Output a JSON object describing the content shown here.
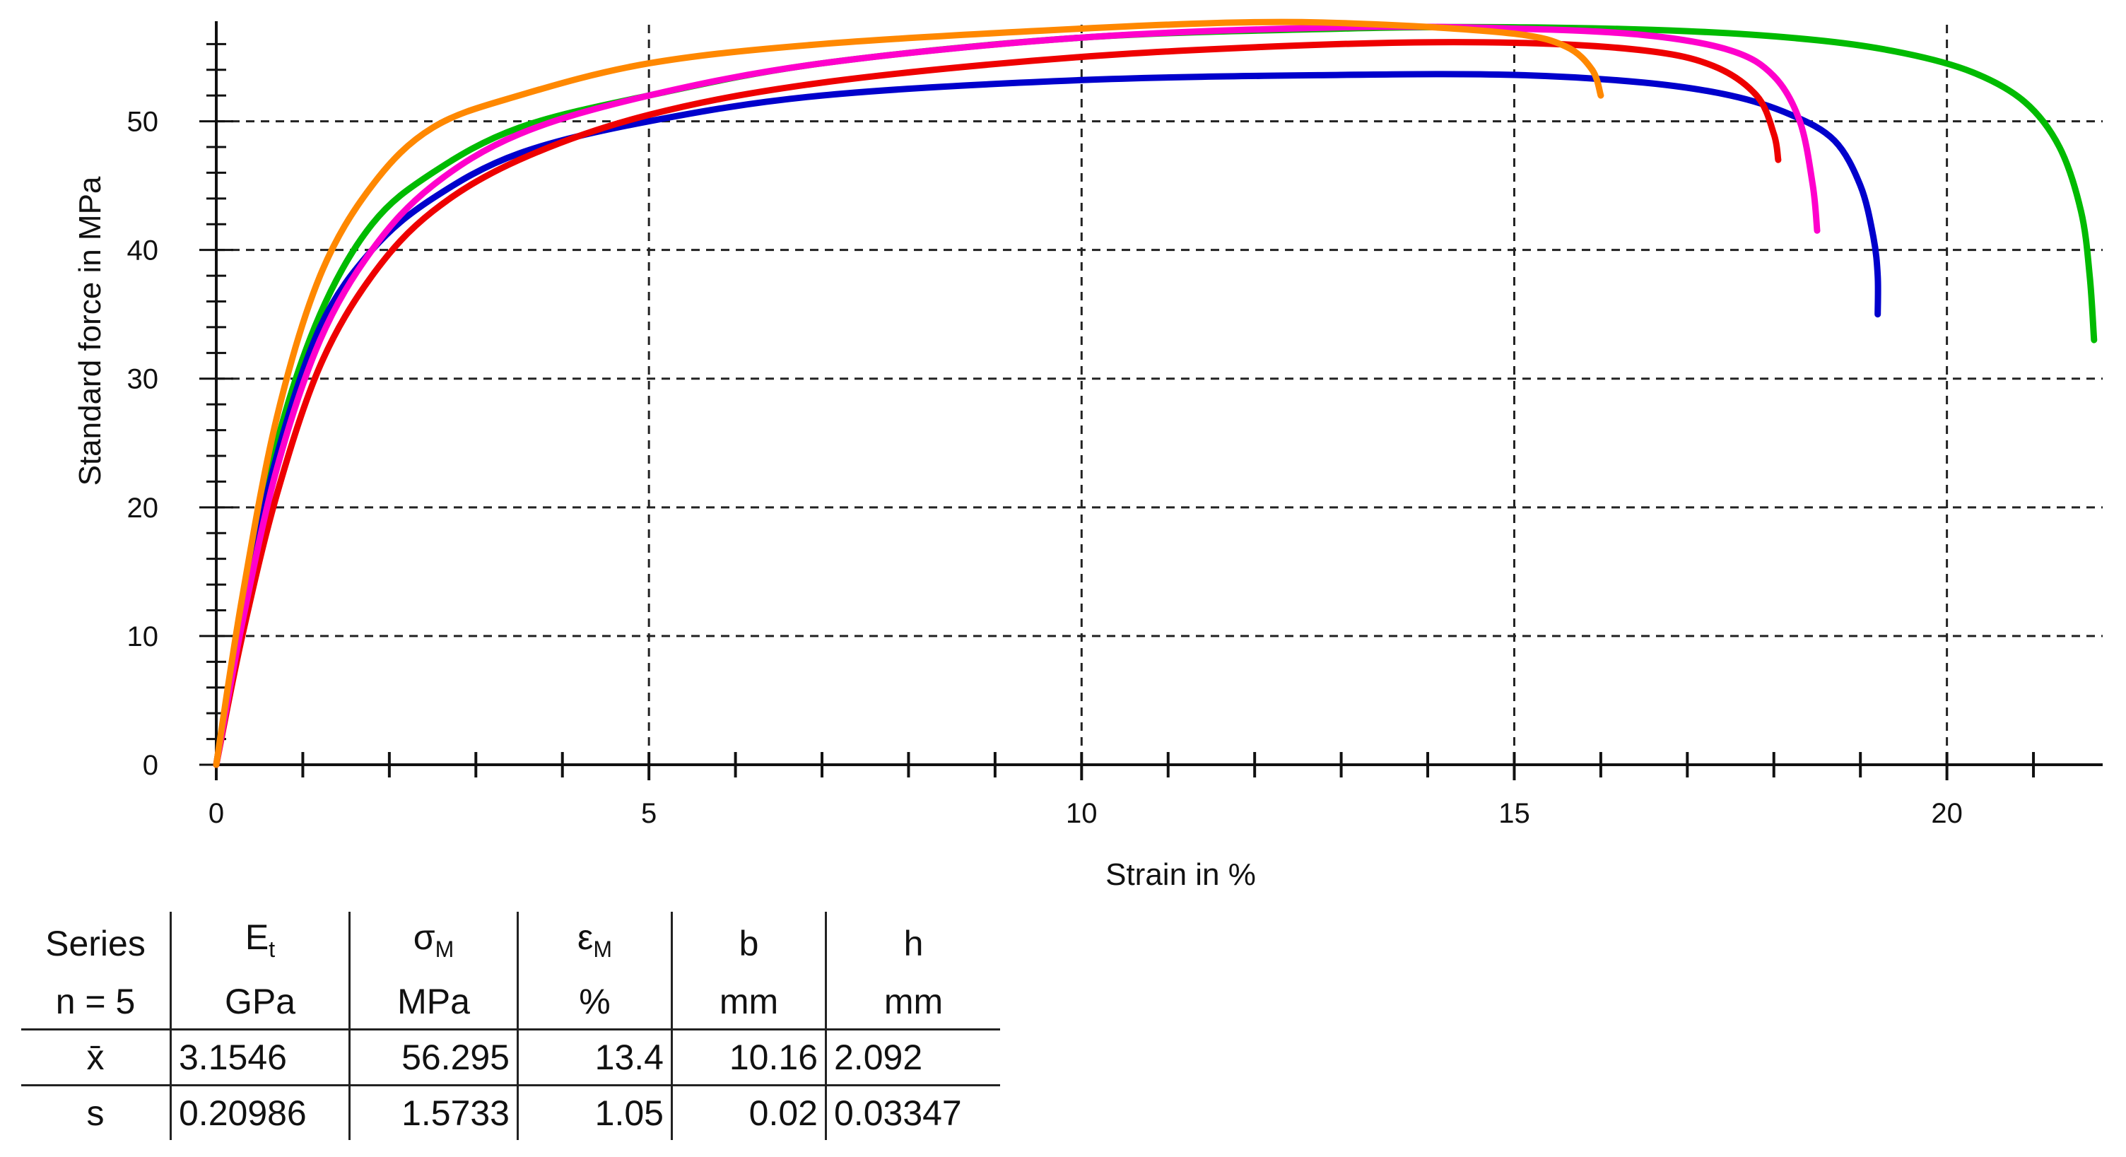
{
  "chart_data": {
    "type": "line",
    "title": "",
    "xlabel": "Strain in %",
    "ylabel": "Standard force in MPa",
    "xlim": [
      0,
      21.8
    ],
    "ylim": [
      0,
      57.5
    ],
    "xticks": [
      0,
      5,
      10,
      15,
      20
    ],
    "yticks": [
      0,
      10,
      20,
      30,
      40,
      50
    ],
    "grid": true,
    "series": [
      {
        "color": "#0000cc",
        "x": [
          0,
          0.3,
          0.7,
          1.2,
          1.8,
          2.5,
          3.5,
          5,
          7,
          10,
          13,
          15,
          16.5,
          17.5,
          18.2,
          18.7,
          19.0,
          19.15,
          19.2,
          19.2
        ],
        "y": [
          0,
          12,
          24,
          34,
          40,
          44,
          47.5,
          50,
          52,
          53.2,
          53.6,
          53.6,
          53,
          52,
          50.5,
          48.5,
          45,
          41,
          38,
          35
        ]
      },
      {
        "color": "#ee0000",
        "x": [
          0,
          0.3,
          0.7,
          1.2,
          1.8,
          2.5,
          3.5,
          5,
          7,
          10,
          13,
          15,
          16.5,
          17.3,
          17.8,
          18.0,
          18.05
        ],
        "y": [
          0,
          10,
          21,
          31,
          38,
          43,
          47,
          50.5,
          53,
          55,
          56,
          56.1,
          55.5,
          54.3,
          52,
          49,
          47
        ]
      },
      {
        "color": "#ff8800",
        "x": [
          0,
          0.3,
          0.7,
          1.2,
          1.8,
          2.5,
          3.5,
          5,
          7,
          10,
          12,
          13.5,
          15,
          15.6,
          15.9,
          16.0
        ],
        "y": [
          0,
          13,
          27,
          38,
          45,
          49.5,
          52,
          54.5,
          56,
          57.2,
          57.7,
          57.5,
          56.8,
          55.8,
          54,
          52
        ]
      },
      {
        "color": "#ff00cc",
        "x": [
          0,
          0.3,
          0.7,
          1.2,
          1.8,
          2.5,
          3.5,
          5,
          7,
          10,
          13,
          15,
          16.5,
          17.5,
          18.0,
          18.3,
          18.45,
          18.5
        ],
        "y": [
          0,
          11,
          23,
          33,
          40,
          45,
          49,
          52,
          54.5,
          56.5,
          57.3,
          57.2,
          56.7,
          55.5,
          53.5,
          50,
          45,
          41.5
        ]
      },
      {
        "color": "#00bb00",
        "x": [
          0,
          0.3,
          0.7,
          1.2,
          1.8,
          2.5,
          3.5,
          5,
          7,
          10,
          13,
          15,
          17,
          18.5,
          19.5,
          20.3,
          20.9,
          21.3,
          21.55,
          21.65,
          21.7
        ],
        "y": [
          0,
          12,
          25,
          35,
          42,
          46,
          49.5,
          52,
          54.5,
          56.5,
          57.2,
          57.3,
          57,
          56.3,
          55.3,
          53.8,
          51.5,
          48,
          43,
          38,
          33
        ]
      }
    ]
  },
  "table": {
    "header1": [
      "Series",
      "E",
      "t",
      "σ",
      "M",
      "ε",
      "M",
      "b",
      "h"
    ],
    "header2": [
      "n = 5",
      "GPa",
      "MPa",
      "%",
      "mm",
      "mm"
    ],
    "rows": [
      [
        "x̄",
        "3.1546",
        "56.295",
        "13.4",
        "10.16",
        "2.092"
      ],
      [
        "s",
        "0.20986",
        "1.5733",
        "1.05",
        "0.02",
        "0.03347"
      ]
    ]
  }
}
